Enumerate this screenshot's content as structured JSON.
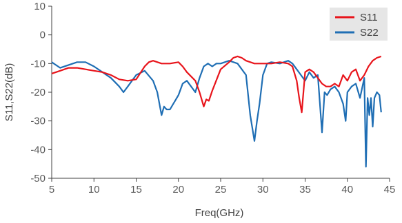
{
  "chart_data": {
    "type": "line",
    "xlabel": "Freq(GHz)",
    "ylabel": "S11,S22(dB)",
    "xlim": [
      5,
      45
    ],
    "ylim": [
      -50,
      10
    ],
    "xticks": [
      "5",
      "10",
      "15",
      "20",
      "25",
      "30",
      "35",
      "40",
      "45"
    ],
    "yticks": [
      "10",
      "0",
      "-10",
      "-20",
      "-30",
      "-40",
      "-50"
    ],
    "grid": false,
    "legend_position": "top-right",
    "series": [
      {
        "name": "S11",
        "color": "#e8141b",
        "x": [
          5,
          6,
          7,
          8,
          9,
          10,
          11,
          12,
          13,
          14,
          15,
          16,
          16.5,
          17,
          18,
          19,
          20,
          20.5,
          21,
          22,
          22.5,
          23,
          23.3,
          23.6,
          24,
          25,
          26,
          26.5,
          27,
          27.5,
          28,
          29,
          30,
          31,
          32,
          33,
          33.5,
          34,
          34.3,
          34.6,
          35,
          35.5,
          36,
          36.5,
          37,
          37.5,
          38,
          38.5,
          39,
          39.5,
          40,
          40.5,
          41,
          41.5,
          42,
          42.5,
          43,
          43.5,
          44
        ],
        "y": [
          -13.5,
          -12.5,
          -11.5,
          -11.5,
          -12,
          -12.5,
          -13,
          -14,
          -15.5,
          -16,
          -15.5,
          -11,
          -9.5,
          -9,
          -10,
          -10,
          -9.5,
          -11,
          -13,
          -16,
          -20,
          -25,
          -22.5,
          -23,
          -19.5,
          -12,
          -9.5,
          -8,
          -7.5,
          -8,
          -9,
          -10,
          -10,
          -10,
          -9.5,
          -10,
          -11,
          -16,
          -22,
          -27,
          -13,
          -12,
          -13,
          -15,
          -17,
          -18,
          -18,
          -17,
          -18,
          -14,
          -16,
          -13,
          -12,
          -16,
          -14,
          -11,
          -9,
          -8,
          -7.5
        ]
      },
      {
        "name": "S22",
        "color": "#1f6eb4",
        "x": [
          5,
          6,
          7,
          8,
          9,
          10,
          11,
          12,
          13,
          13.5,
          14,
          15,
          16,
          17,
          17.5,
          18,
          18.3,
          18.6,
          19,
          20,
          20.5,
          21,
          22,
          22.5,
          23,
          23.5,
          24,
          24.5,
          25,
          26,
          27,
          28,
          28.5,
          29,
          29.3,
          29.6,
          30,
          30.5,
          31,
          32,
          33,
          33.5,
          34,
          34.5,
          35,
          35.5,
          36,
          36.5,
          37,
          37.3,
          37.6,
          38,
          38.5,
          39,
          39.5,
          39.8,
          40,
          40.5,
          41,
          41.5,
          42,
          42.2,
          42.4,
          42.6,
          42.8,
          43,
          43.2,
          43.5,
          43.8,
          44
        ],
        "y": [
          -9.5,
          -11.5,
          -10.5,
          -9.5,
          -9.5,
          -11,
          -13,
          -15,
          -18,
          -20,
          -18,
          -14,
          -12.5,
          -16,
          -20,
          -28,
          -25,
          -26,
          -26,
          -21,
          -17,
          -16,
          -20,
          -15,
          -11,
          -10,
          -11,
          -10,
          -10,
          -9,
          -10,
          -14,
          -28,
          -37,
          -30,
          -24,
          -14,
          -10,
          -9.5,
          -10,
          -9,
          -10,
          -12,
          -14,
          -16,
          -13,
          -15,
          -14,
          -34,
          -20,
          -21,
          -19,
          -18,
          -20,
          -24,
          -30,
          -20,
          -18,
          -17,
          -22,
          -15,
          -46,
          -22,
          -28,
          -22,
          -32,
          -22,
          -20,
          -21,
          -27
        ]
      }
    ]
  }
}
